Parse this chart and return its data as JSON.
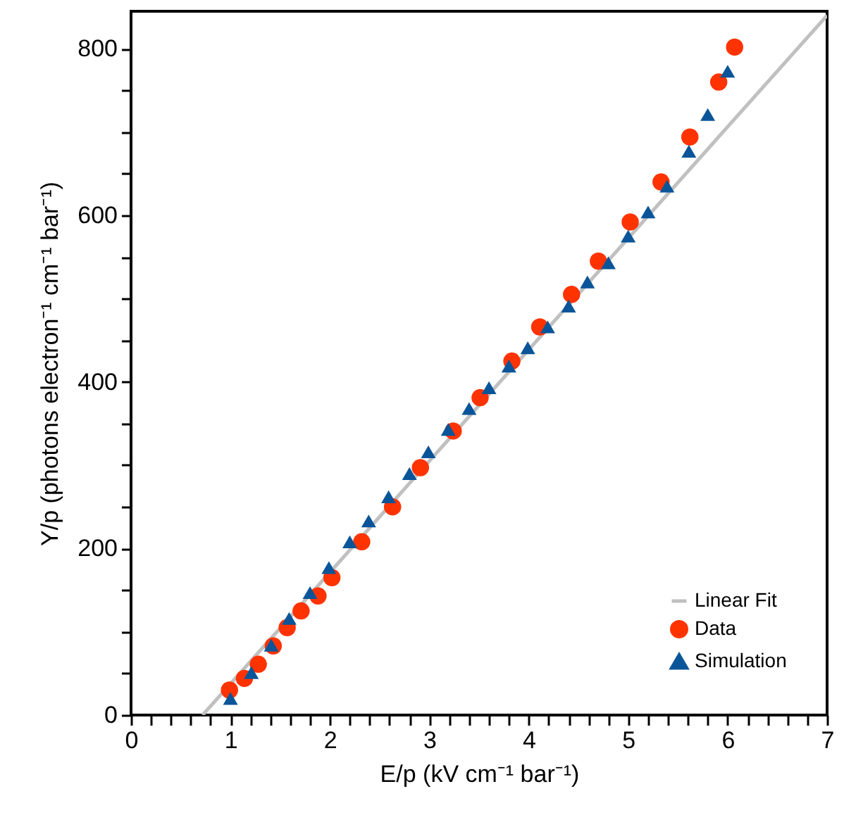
{
  "chart_data": {
    "type": "scatter",
    "xlabel": "E/p (kV cm⁻¹ bar⁻¹)",
    "ylabel": "Y/p (photons electron⁻¹ cm⁻¹ bar⁻¹)",
    "xlim": [
      0,
      7
    ],
    "ylim": [
      0,
      845
    ],
    "xticks": [
      0,
      {
        "value": 0.2,
        "label": null
      },
      {
        "value": 0.4,
        "label": null
      },
      {
        "value": 0.6,
        "label": null
      },
      {
        "value": 0.8,
        "label": null
      },
      1,
      {
        "value": 1.2,
        "label": null
      },
      {
        "value": 1.4,
        "label": null
      },
      {
        "value": 1.6,
        "label": null
      },
      {
        "value": 1.8,
        "label": null
      },
      2,
      {
        "value": 2.2,
        "label": null
      },
      {
        "value": 2.4,
        "label": null
      },
      {
        "value": 2.6,
        "label": null
      },
      {
        "value": 2.8,
        "label": null
      },
      3,
      {
        "value": 3.2,
        "label": null
      },
      {
        "value": 3.4,
        "label": null
      },
      {
        "value": 3.6,
        "label": null
      },
      {
        "value": 3.8,
        "label": null
      },
      4,
      {
        "value": 4.2,
        "label": null
      },
      {
        "value": 4.4,
        "label": null
      },
      {
        "value": 4.6,
        "label": null
      },
      {
        "value": 4.8,
        "label": null
      },
      5,
      {
        "value": 5.2,
        "label": null
      },
      {
        "value": 5.4,
        "label": null
      },
      {
        "value": 5.6,
        "label": null
      },
      {
        "value": 5.8,
        "label": null
      },
      6,
      {
        "value": 6.2,
        "label": null
      },
      {
        "value": 6.4,
        "label": null
      },
      {
        "value": 6.6,
        "label": null
      },
      {
        "value": 6.8,
        "label": null
      },
      7
    ],
    "yticks": [
      0,
      {
        "value": 50,
        "label": null
      },
      {
        "value": 100,
        "label": null
      },
      {
        "value": 150,
        "label": null
      },
      200,
      {
        "value": 250,
        "label": null
      },
      {
        "value": 300,
        "label": null
      },
      {
        "value": 350,
        "label": null
      },
      400,
      {
        "value": 450,
        "label": null
      },
      {
        "value": 500,
        "label": null
      },
      {
        "value": 550,
        "label": null
      },
      600,
      {
        "value": 650,
        "label": null
      },
      {
        "value": 700,
        "label": null
      },
      {
        "value": 750,
        "label": null
      },
      800
    ],
    "grid": false,
    "legend": "bottom right",
    "series": [
      {
        "name": "Linear Fit",
        "type": "line",
        "color": "#c0c0c0",
        "marker": "none",
        "line_style": "solid",
        "x": [
          0.72,
          7
        ],
        "values": [
          0,
          840
        ]
      },
      {
        "name": "Data",
        "type": "scatter",
        "color": "#ff3300",
        "marker": "circle",
        "x": [
          0.99,
          1.14,
          1.28,
          1.43,
          1.57,
          1.71,
          1.88,
          2.02,
          2.32,
          2.63,
          2.91,
          3.24,
          3.51,
          3.83,
          4.11,
          4.43,
          4.7,
          5.02,
          5.33,
          5.62,
          5.91,
          6.07
        ],
        "values": [
          30,
          44,
          61,
          83,
          105,
          125,
          143,
          165,
          208,
          250,
          297,
          341,
          381,
          425,
          466,
          505,
          545,
          592,
          640,
          694,
          760,
          802
        ]
      },
      {
        "name": "Simulation",
        "type": "scatter",
        "color": "#0a5599",
        "marker": "triangle",
        "x": [
          1.0,
          1.21,
          1.41,
          1.59,
          1.8,
          1.99,
          2.2,
          2.39,
          2.59,
          2.8,
          2.99,
          3.19,
          3.4,
          3.6,
          3.8,
          3.99,
          4.19,
          4.4,
          4.59,
          4.8,
          5.0,
          5.2,
          5.39,
          5.61,
          5.8,
          6.0
        ],
        "values": [
          20,
          51,
          84,
          116,
          147,
          177,
          208,
          233,
          262,
          290,
          316,
          343,
          368,
          393,
          419,
          441,
          466,
          491,
          520,
          543,
          575,
          604,
          635,
          677,
          721,
          773
        ]
      }
    ]
  }
}
